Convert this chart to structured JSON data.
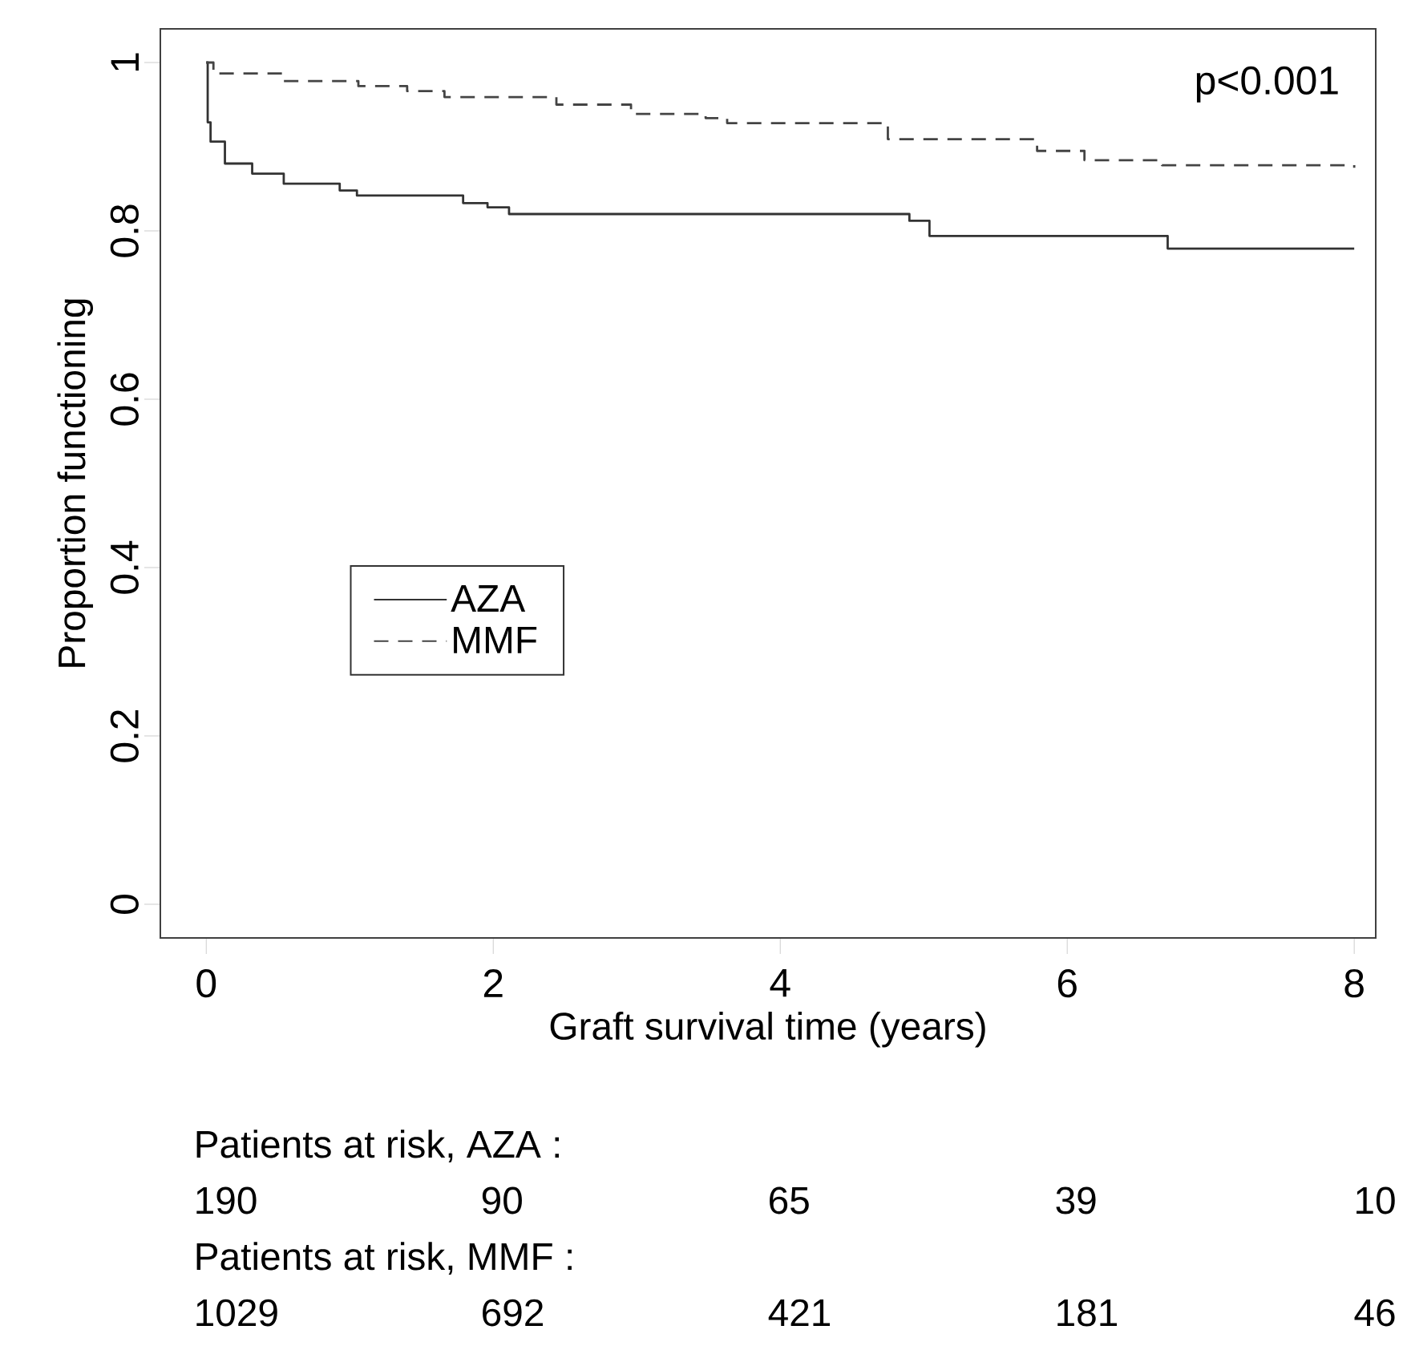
{
  "chart_data": {
    "type": "step",
    "xlabel": "Graft survival time (years)",
    "ylabel": "Proportion functioning",
    "xlim": [
      -0.32,
      8.15
    ],
    "ylim": [
      -0.04,
      1.04
    ],
    "xticks": [
      0,
      2,
      4,
      6,
      8
    ],
    "yticks": [
      0,
      {
        "value": 0.2,
        "label": "0.2"
      },
      {
        "value": 0.4,
        "label": "0.4"
      },
      {
        "value": 0.6,
        "label": "0.6"
      },
      {
        "value": 0.8,
        "label": "0.8"
      },
      1
    ],
    "grid": false,
    "legend": "left",
    "marker": "none",
    "series": [
      {
        "name": "AZA",
        "color": "#333333",
        "line_style": "solid",
        "x": [
          0,
          0.01,
          0.03,
          0.13,
          0.32,
          0.54,
          0.93,
          1.05,
          1.79,
          1.96,
          2.11,
          4.9,
          5.04,
          6.7,
          8.0
        ],
        "values": [
          1,
          0.929,
          0.906,
          0.88,
          0.868,
          0.856,
          0.848,
          0.842,
          0.833,
          0.828,
          0.82,
          0.812,
          0.794,
          0.779,
          0.779
        ]
      },
      {
        "name": "MMF",
        "color": "#444444",
        "line_style": "dashed",
        "x": [
          0,
          0.05,
          0.54,
          1.06,
          1.4,
          1.66,
          2.44,
          2.96,
          3.48,
          3.63,
          4.75,
          5.79,
          6.12,
          6.66,
          8.0
        ],
        "values": [
          1,
          0.987,
          0.978,
          0.972,
          0.966,
          0.959,
          0.95,
          0.939,
          0.934,
          0.928,
          0.909,
          0.895,
          0.884,
          0.878,
          0.875
        ]
      }
    ],
    "annotations": [
      "p<0.001",
      "Patients at risk,  AZA :",
      "190",
      "90",
      "65",
      "39",
      "10",
      "Patients at risk,  MMF :",
      "1029",
      "692",
      "421",
      "181",
      "46"
    ]
  }
}
